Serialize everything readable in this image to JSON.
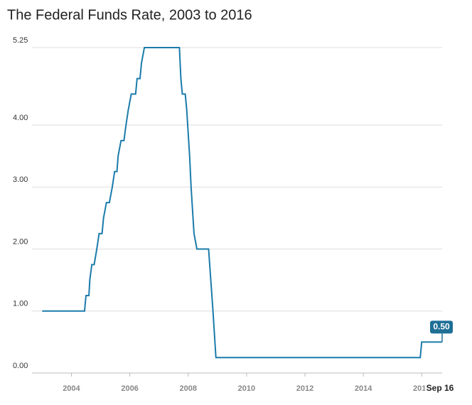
{
  "chart_data": {
    "type": "line",
    "title": "The Federal Funds Rate, 2003 to 2016",
    "x": [
      2003.0,
      2004.45,
      2004.5,
      2004.6,
      2004.63,
      2004.7,
      2004.78,
      2004.87,
      2004.95,
      2005.05,
      2005.1,
      2005.2,
      2005.3,
      2005.4,
      2005.48,
      2005.56,
      2005.6,
      2005.7,
      2005.8,
      2005.87,
      2005.95,
      2006.05,
      2006.2,
      2006.25,
      2006.35,
      2006.4,
      2006.5,
      2007.7,
      2007.75,
      2007.8,
      2007.9,
      2007.95,
      2008.05,
      2008.1,
      2008.2,
      2008.3,
      2008.7,
      2008.85,
      2008.95,
      2015.95,
      2016.0,
      2016.7
    ],
    "series": [
      {
        "name": "Federal funds rate",
        "color": "#1b7bab",
        "values": [
          1.0,
          1.0,
          1.25,
          1.25,
          1.5,
          1.75,
          1.75,
          2.0,
          2.25,
          2.25,
          2.5,
          2.75,
          2.75,
          3.0,
          3.25,
          3.25,
          3.5,
          3.75,
          3.75,
          4.0,
          4.25,
          4.5,
          4.5,
          4.75,
          4.75,
          5.0,
          5.25,
          5.25,
          4.75,
          4.5,
          4.5,
          4.25,
          3.5,
          3.0,
          2.25,
          2.0,
          2.0,
          1.0,
          0.25,
          0.25,
          0.5,
          0.5
        ]
      }
    ],
    "xlim": [
      2002.65,
      2016.7
    ],
    "xticks": [
      2004,
      2006,
      2008,
      2010,
      2012,
      2014,
      2016
    ],
    "ylim": [
      0,
      5.25
    ],
    "yticks": [
      {
        "value": 0,
        "label": "0.00"
      },
      {
        "value": 1,
        "label": "1.00"
      },
      {
        "value": 2,
        "label": "2.00"
      },
      {
        "value": 3,
        "label": "3.00"
      },
      {
        "value": 4,
        "label": "4.00"
      },
      {
        "value": 5.25,
        "label": "5.25"
      }
    ],
    "grid": true,
    "cursor": {
      "x": 2016.7,
      "x_label": "Sep 16",
      "value": 0.5,
      "value_label": "0.50",
      "color": "#1f6f96"
    }
  }
}
